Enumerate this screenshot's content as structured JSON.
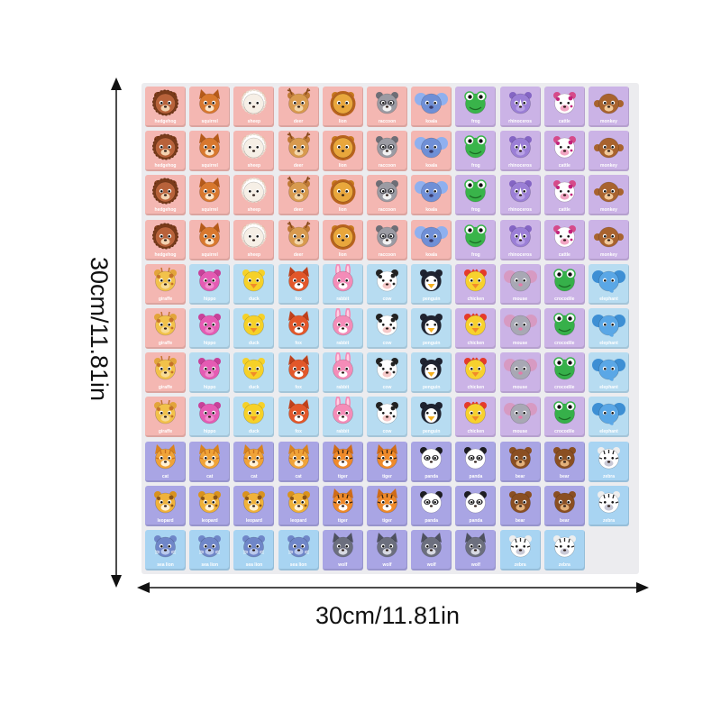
{
  "dimensions": {
    "width_label": "30cm/11.81in",
    "height_label": "30cm/11.81in"
  },
  "colors": {
    "pink": "#f4b7b2",
    "blue": "#b7dcf1",
    "lilac": "#cbb3e6",
    "purple": "#a9a5e4",
    "lightblue": "#a8d4f2"
  },
  "board": {
    "rows": [
      {
        "cells": [
          {
            "animal": "hedgehog",
            "icon": "hedgehog-icon",
            "bg": "pink",
            "label": "hedgehog"
          },
          {
            "animal": "squirrel",
            "icon": "squirrel-icon",
            "bg": "pink",
            "label": "squirrel"
          },
          {
            "animal": "sheep",
            "icon": "sheep-icon",
            "bg": "pink",
            "label": "sheep"
          },
          {
            "animal": "deer",
            "icon": "deer-icon",
            "bg": "pink",
            "label": "deer"
          },
          {
            "animal": "lion",
            "icon": "lion-icon",
            "bg": "pink",
            "label": "lion"
          },
          {
            "animal": "raccoon",
            "icon": "raccoon-icon",
            "bg": "pink",
            "label": "raccoon"
          },
          {
            "animal": "koala",
            "icon": "koala-icon",
            "bg": "pink",
            "label": "koala"
          },
          {
            "animal": "frog",
            "icon": "frog-icon",
            "bg": "lilac",
            "label": "frog"
          },
          {
            "animal": "rhinoceros",
            "icon": "rhinoceros-icon",
            "bg": "lilac",
            "label": "rhinoceros"
          },
          {
            "animal": "cattle",
            "icon": "cattle-icon",
            "bg": "lilac",
            "label": "cattle"
          },
          {
            "animal": "monkey",
            "icon": "monkey-icon",
            "bg": "lilac",
            "label": "monkey"
          }
        ]
      },
      {
        "cells": [
          {
            "animal": "hedgehog",
            "icon": "hedgehog-icon",
            "bg": "pink",
            "label": "hedgehog"
          },
          {
            "animal": "squirrel",
            "icon": "squirrel-icon",
            "bg": "pink",
            "label": "squirrel"
          },
          {
            "animal": "sheep",
            "icon": "sheep-icon",
            "bg": "pink",
            "label": "sheep"
          },
          {
            "animal": "deer",
            "icon": "deer-icon",
            "bg": "pink",
            "label": "deer"
          },
          {
            "animal": "lion",
            "icon": "lion-icon",
            "bg": "pink",
            "label": "lion"
          },
          {
            "animal": "raccoon",
            "icon": "raccoon-icon",
            "bg": "pink",
            "label": "raccoon"
          },
          {
            "animal": "koala",
            "icon": "koala-icon",
            "bg": "pink",
            "label": "koala"
          },
          {
            "animal": "frog",
            "icon": "frog-icon",
            "bg": "lilac",
            "label": "frog"
          },
          {
            "animal": "rhinoceros",
            "icon": "rhinoceros-icon",
            "bg": "lilac",
            "label": "rhinoceros"
          },
          {
            "animal": "cattle",
            "icon": "cattle-icon",
            "bg": "lilac",
            "label": "cattle"
          },
          {
            "animal": "monkey",
            "icon": "monkey-icon",
            "bg": "lilac",
            "label": "monkey"
          }
        ]
      },
      {
        "cells": [
          {
            "animal": "hedgehog",
            "icon": "hedgehog-icon",
            "bg": "pink",
            "label": "hedgehog"
          },
          {
            "animal": "squirrel",
            "icon": "squirrel-icon",
            "bg": "pink",
            "label": "squirrel"
          },
          {
            "animal": "sheep",
            "icon": "sheep-icon",
            "bg": "pink",
            "label": "sheep"
          },
          {
            "animal": "deer",
            "icon": "deer-icon",
            "bg": "pink",
            "label": "deer"
          },
          {
            "animal": "lion",
            "icon": "lion-icon",
            "bg": "pink",
            "label": "lion"
          },
          {
            "animal": "raccoon",
            "icon": "raccoon-icon",
            "bg": "pink",
            "label": "raccoon"
          },
          {
            "animal": "koala",
            "icon": "koala-icon",
            "bg": "pink",
            "label": "koala"
          },
          {
            "animal": "frog",
            "icon": "frog-icon",
            "bg": "lilac",
            "label": "frog"
          },
          {
            "animal": "rhinoceros",
            "icon": "rhinoceros-icon",
            "bg": "lilac",
            "label": "rhinoceros"
          },
          {
            "animal": "cattle",
            "icon": "cattle-icon",
            "bg": "lilac",
            "label": "cattle"
          },
          {
            "animal": "monkey",
            "icon": "monkey-icon",
            "bg": "lilac",
            "label": "monkey"
          }
        ]
      },
      {
        "cells": [
          {
            "animal": "hedgehog",
            "icon": "hedgehog-icon",
            "bg": "pink",
            "label": "hedgehog"
          },
          {
            "animal": "squirrel",
            "icon": "squirrel-icon",
            "bg": "pink",
            "label": "squirrel"
          },
          {
            "animal": "sheep",
            "icon": "sheep-icon",
            "bg": "pink",
            "label": "sheep"
          },
          {
            "animal": "deer",
            "icon": "deer-icon",
            "bg": "pink",
            "label": "deer"
          },
          {
            "animal": "lion",
            "icon": "lion-icon",
            "bg": "pink",
            "label": "lion"
          },
          {
            "animal": "raccoon",
            "icon": "raccoon-icon",
            "bg": "pink",
            "label": "raccoon"
          },
          {
            "animal": "koala",
            "icon": "koala-icon",
            "bg": "pink",
            "label": "koala"
          },
          {
            "animal": "frog",
            "icon": "frog-icon",
            "bg": "lilac",
            "label": "frog"
          },
          {
            "animal": "rhinoceros",
            "icon": "rhinoceros-icon",
            "bg": "lilac",
            "label": "rhinoceros"
          },
          {
            "animal": "cattle",
            "icon": "cattle-icon",
            "bg": "lilac",
            "label": "cattle"
          },
          {
            "animal": "monkey",
            "icon": "monkey-icon",
            "bg": "lilac",
            "label": "monkey"
          }
        ]
      },
      {
        "cells": [
          {
            "animal": "giraffe",
            "icon": "giraffe-icon",
            "bg": "pink",
            "label": "giraffe"
          },
          {
            "animal": "hippo",
            "icon": "hippo-icon",
            "bg": "blue",
            "label": "hippo"
          },
          {
            "animal": "duck",
            "icon": "duck-icon",
            "bg": "blue",
            "label": "duck"
          },
          {
            "animal": "fox",
            "icon": "fox-icon",
            "bg": "blue",
            "label": "fox"
          },
          {
            "animal": "rabbit",
            "icon": "rabbit-icon",
            "bg": "blue",
            "label": "rabbit"
          },
          {
            "animal": "cow",
            "icon": "cow-icon",
            "bg": "blue",
            "label": "cow"
          },
          {
            "animal": "penguin",
            "icon": "penguin-icon",
            "bg": "blue",
            "label": "penguin"
          },
          {
            "animal": "chicken",
            "icon": "chicken-icon",
            "bg": "lilac",
            "label": "chicken"
          },
          {
            "animal": "mouse",
            "icon": "mouse-icon",
            "bg": "lilac",
            "label": "mouse"
          },
          {
            "animal": "crocodile",
            "icon": "crocodile-icon",
            "bg": "lilac",
            "label": "crocodile"
          },
          {
            "animal": "elephant",
            "icon": "elephant-icon",
            "bg": "blue",
            "label": "elephant"
          }
        ]
      },
      {
        "cells": [
          {
            "animal": "giraffe",
            "icon": "giraffe-icon",
            "bg": "pink",
            "label": "giraffe"
          },
          {
            "animal": "hippo",
            "icon": "hippo-icon",
            "bg": "blue",
            "label": "hippo"
          },
          {
            "animal": "duck",
            "icon": "duck-icon",
            "bg": "blue",
            "label": "duck"
          },
          {
            "animal": "fox",
            "icon": "fox-icon",
            "bg": "blue",
            "label": "fox"
          },
          {
            "animal": "rabbit",
            "icon": "rabbit-icon",
            "bg": "blue",
            "label": "rabbit"
          },
          {
            "animal": "cow",
            "icon": "cow-icon",
            "bg": "blue",
            "label": "cow"
          },
          {
            "animal": "penguin",
            "icon": "penguin-icon",
            "bg": "blue",
            "label": "penguin"
          },
          {
            "animal": "chicken",
            "icon": "chicken-icon",
            "bg": "lilac",
            "label": "chicken"
          },
          {
            "animal": "mouse",
            "icon": "mouse-icon",
            "bg": "lilac",
            "label": "mouse"
          },
          {
            "animal": "crocodile",
            "icon": "crocodile-icon",
            "bg": "lilac",
            "label": "crocodile"
          },
          {
            "animal": "elephant",
            "icon": "elephant-icon",
            "bg": "blue",
            "label": "elephant"
          }
        ]
      },
      {
        "cells": [
          {
            "animal": "giraffe",
            "icon": "giraffe-icon",
            "bg": "pink",
            "label": "giraffe"
          },
          {
            "animal": "hippo",
            "icon": "hippo-icon",
            "bg": "blue",
            "label": "hippo"
          },
          {
            "animal": "duck",
            "icon": "duck-icon",
            "bg": "blue",
            "label": "duck"
          },
          {
            "animal": "fox",
            "icon": "fox-icon",
            "bg": "blue",
            "label": "fox"
          },
          {
            "animal": "rabbit",
            "icon": "rabbit-icon",
            "bg": "blue",
            "label": "rabbit"
          },
          {
            "animal": "cow",
            "icon": "cow-icon",
            "bg": "blue",
            "label": "cow"
          },
          {
            "animal": "penguin",
            "icon": "penguin-icon",
            "bg": "blue",
            "label": "penguin"
          },
          {
            "animal": "chicken",
            "icon": "chicken-icon",
            "bg": "lilac",
            "label": "chicken"
          },
          {
            "animal": "mouse",
            "icon": "mouse-icon",
            "bg": "lilac",
            "label": "mouse"
          },
          {
            "animal": "crocodile",
            "icon": "crocodile-icon",
            "bg": "lilac",
            "label": "crocodile"
          },
          {
            "animal": "elephant",
            "icon": "elephant-icon",
            "bg": "blue",
            "label": "elephant"
          }
        ]
      },
      {
        "cells": [
          {
            "animal": "giraffe",
            "icon": "giraffe-icon",
            "bg": "pink",
            "label": "giraffe"
          },
          {
            "animal": "hippo",
            "icon": "hippo-icon",
            "bg": "blue",
            "label": "hippo"
          },
          {
            "animal": "duck",
            "icon": "duck-icon",
            "bg": "blue",
            "label": "duck"
          },
          {
            "animal": "fox",
            "icon": "fox-icon",
            "bg": "blue",
            "label": "fox"
          },
          {
            "animal": "rabbit",
            "icon": "rabbit-icon",
            "bg": "blue",
            "label": "rabbit"
          },
          {
            "animal": "cow",
            "icon": "cow-icon",
            "bg": "blue",
            "label": "cow"
          },
          {
            "animal": "penguin",
            "icon": "penguin-icon",
            "bg": "blue",
            "label": "penguin"
          },
          {
            "animal": "chicken",
            "icon": "chicken-icon",
            "bg": "lilac",
            "label": "chicken"
          },
          {
            "animal": "mouse",
            "icon": "mouse-icon",
            "bg": "lilac",
            "label": "mouse"
          },
          {
            "animal": "crocodile",
            "icon": "crocodile-icon",
            "bg": "lilac",
            "label": "crocodile"
          },
          {
            "animal": "elephant",
            "icon": "elephant-icon",
            "bg": "blue",
            "label": "elephant"
          }
        ]
      },
      {
        "cells": [
          {
            "animal": "cat",
            "icon": "cat-icon",
            "bg": "purple",
            "label": "cat"
          },
          {
            "animal": "cat",
            "icon": "cat-icon",
            "bg": "purple",
            "label": "cat"
          },
          {
            "animal": "cat",
            "icon": "cat-icon",
            "bg": "purple",
            "label": "cat"
          },
          {
            "animal": "cat",
            "icon": "cat-icon",
            "bg": "purple",
            "label": "cat"
          },
          {
            "animal": "tiger",
            "icon": "tiger-icon",
            "bg": "purple",
            "label": "tiger"
          },
          {
            "animal": "tiger",
            "icon": "tiger-icon",
            "bg": "purple",
            "label": "tiger"
          },
          {
            "animal": "panda",
            "icon": "panda-icon",
            "bg": "purple",
            "label": "panda"
          },
          {
            "animal": "panda",
            "icon": "panda-icon",
            "bg": "purple",
            "label": "panda"
          },
          {
            "animal": "bear",
            "icon": "bear-icon",
            "bg": "purple",
            "label": "bear"
          },
          {
            "animal": "bear",
            "icon": "bear-icon",
            "bg": "purple",
            "label": "bear"
          },
          {
            "animal": "zebra",
            "icon": "zebra-icon",
            "bg": "lightblue",
            "label": "zebra"
          }
        ]
      },
      {
        "cells": [
          {
            "animal": "leopard",
            "icon": "leopard-icon",
            "bg": "purple",
            "label": "leopard"
          },
          {
            "animal": "leopard",
            "icon": "leopard-icon",
            "bg": "purple",
            "label": "leopard"
          },
          {
            "animal": "leopard",
            "icon": "leopard-icon",
            "bg": "purple",
            "label": "leopard"
          },
          {
            "animal": "leopard",
            "icon": "leopard-icon",
            "bg": "purple",
            "label": "leopard"
          },
          {
            "animal": "tiger",
            "icon": "tiger-icon",
            "bg": "purple",
            "label": "tiger"
          },
          {
            "animal": "tiger",
            "icon": "tiger-icon",
            "bg": "purple",
            "label": "tiger"
          },
          {
            "animal": "panda",
            "icon": "panda-icon",
            "bg": "purple",
            "label": "panda"
          },
          {
            "animal": "panda",
            "icon": "panda-icon",
            "bg": "purple",
            "label": "panda"
          },
          {
            "animal": "bear",
            "icon": "bear-icon",
            "bg": "purple",
            "label": "bear"
          },
          {
            "animal": "bear",
            "icon": "bear-icon",
            "bg": "purple",
            "label": "bear"
          },
          {
            "animal": "zebra",
            "icon": "zebra-icon",
            "bg": "lightblue",
            "label": "zebra"
          }
        ]
      },
      {
        "cells": [
          {
            "animal": "sea lion",
            "icon": "sea-lion-icon",
            "bg": "lightblue",
            "label": "sea lion"
          },
          {
            "animal": "sea lion",
            "icon": "sea-lion-icon",
            "bg": "lightblue",
            "label": "sea lion"
          },
          {
            "animal": "sea lion",
            "icon": "sea-lion-icon",
            "bg": "lightblue",
            "label": "sea lion"
          },
          {
            "animal": "sea lion",
            "icon": "sea-lion-icon",
            "bg": "lightblue",
            "label": "sea lion"
          },
          {
            "animal": "wolf",
            "icon": "wolf-icon",
            "bg": "purple",
            "label": "wolf"
          },
          {
            "animal": "wolf",
            "icon": "wolf-icon",
            "bg": "purple",
            "label": "wolf"
          },
          {
            "animal": "wolf",
            "icon": "wolf-icon",
            "bg": "purple",
            "label": "wolf"
          },
          {
            "animal": "wolf",
            "icon": "wolf-icon",
            "bg": "purple",
            "label": "wolf"
          },
          {
            "animal": "zebra",
            "icon": "zebra-icon",
            "bg": "lightblue",
            "label": "zebra"
          },
          {
            "animal": "zebra",
            "icon": "zebra-icon",
            "bg": "lightblue",
            "label": "zebra"
          }
        ]
      }
    ]
  }
}
